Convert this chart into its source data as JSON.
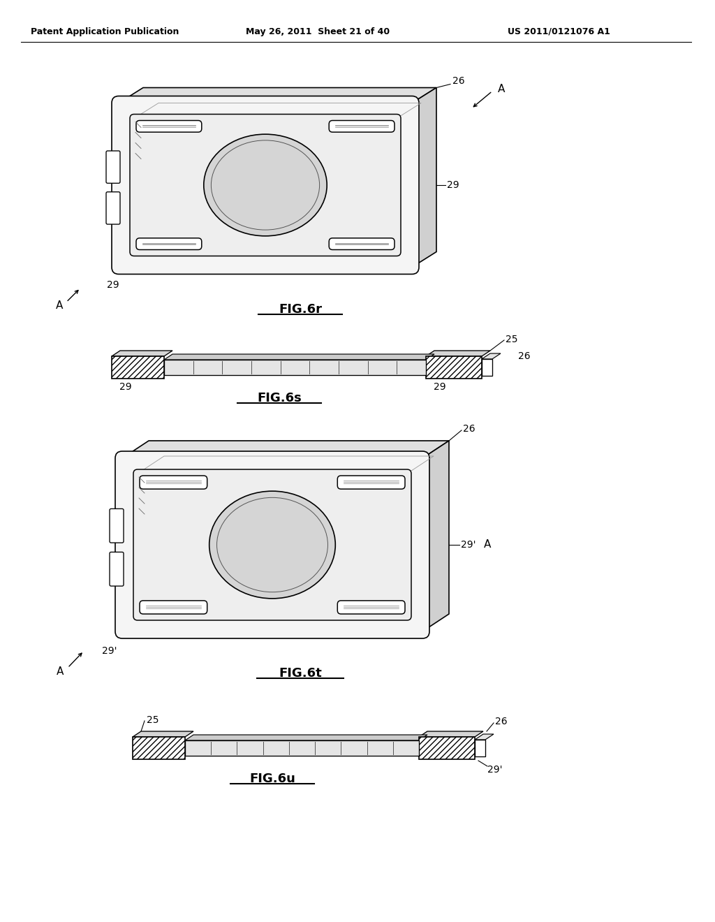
{
  "header_left": "Patent Application Publication",
  "header_mid": "May 26, 2011  Sheet 21 of 40",
  "header_right": "US 2011/0121076 A1",
  "bg_color": "#ffffff",
  "line_color": "#000000",
  "text_color": "#000000",
  "fig6r_label": "FIG.6r",
  "fig6s_label": "FIG.6s",
  "fig6t_label": "FIG.6t",
  "fig6u_label": "FIG.6u"
}
